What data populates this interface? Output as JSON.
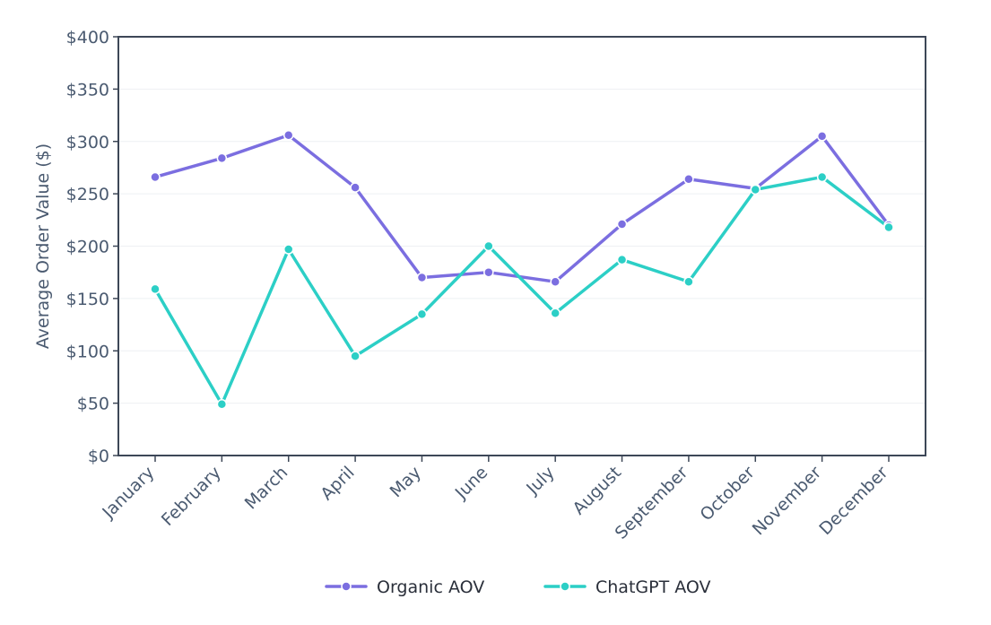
{
  "chart_data": {
    "type": "line",
    "title": "",
    "xlabel": "",
    "ylabel": "Average Order Value ($)",
    "categories": [
      "January",
      "February",
      "March",
      "April",
      "May",
      "June",
      "July",
      "August",
      "September",
      "October",
      "November",
      "December"
    ],
    "ylim": [
      0,
      400
    ],
    "yticks": [
      0,
      50,
      100,
      150,
      200,
      250,
      300,
      350,
      400
    ],
    "ytick_labels": [
      "$0",
      "$50",
      "$100",
      "$150",
      "$200",
      "$250",
      "$300",
      "$350",
      "$400"
    ],
    "grid": true,
    "legend_position": "bottom-center",
    "series": [
      {
        "name": "Organic AOV",
        "color": "#7b6ee0",
        "values": [
          266,
          284,
          306,
          256,
          170,
          175,
          166,
          221,
          264,
          255,
          305,
          220
        ]
      },
      {
        "name": "ChatGPT AOV",
        "color": "#2ccfc6",
        "values": [
          159,
          49,
          197,
          95,
          135,
          200,
          136,
          187,
          166,
          254,
          266,
          218
        ]
      }
    ]
  }
}
